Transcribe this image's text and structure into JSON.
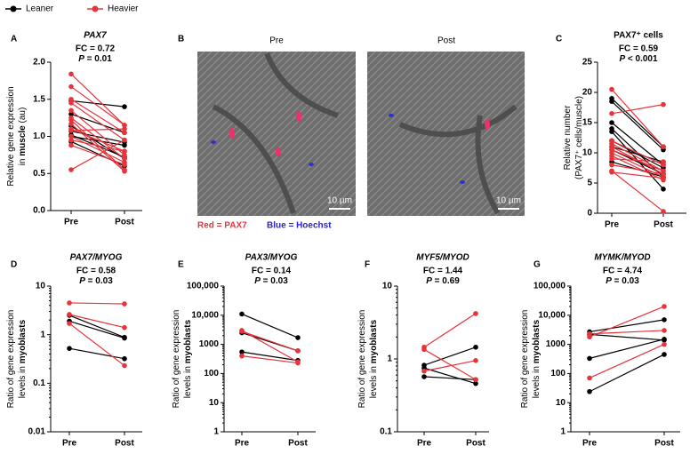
{
  "legend": [
    {
      "name": "Leaner",
      "color": "#000000"
    },
    {
      "name": "Heavier",
      "color": "#e8333b"
    }
  ],
  "image_panel": {
    "panel": "B",
    "titles": [
      "Pre",
      "Post"
    ],
    "scale_bar": "10 µm",
    "stains": [
      {
        "text": "Red = PAX7",
        "color": "#e8333b"
      },
      {
        "text": "Blue = Hoechst",
        "color": "#2a22d6"
      }
    ]
  },
  "chart_data": [
    {
      "type": "paired-line",
      "panel": "A",
      "title": "PAX7",
      "italic": true,
      "fc": "FC = 0.72",
      "p": [
        "P",
        " = 0.01"
      ],
      "ylabel": [
        [
          "Relative gene expression"
        ],
        [
          "in ",
          "muscle",
          " (au)"
        ]
      ],
      "categories": [
        "Pre",
        "Post"
      ],
      "log": false,
      "ylim": [
        0,
        2
      ],
      "yticks": [
        {
          "value": 0,
          "label": "0.0"
        },
        0.5,
        {
          "value": 1,
          "label": "1.0"
        },
        1.5,
        {
          "value": 2,
          "label": "2.0"
        }
      ],
      "leaner": [
        [
          1.48,
          1.4
        ],
        [
          1.3,
          1.05
        ],
        [
          1.0,
          0.88
        ],
        [
          1.07,
          0.92
        ],
        [
          1.02,
          0.72
        ],
        [
          0.93,
          0.6
        ],
        [
          1.14,
          0.7
        ]
      ],
      "heavier": [
        [
          1.84,
          1.15
        ],
        [
          1.67,
          1.15
        ],
        [
          1.5,
          1.05
        ],
        [
          1.45,
          0.95
        ],
        [
          1.35,
          0.75
        ],
        [
          1.22,
          0.55
        ],
        [
          1.17,
          0.53
        ],
        [
          1.1,
          0.8
        ],
        [
          1.08,
          1.1
        ],
        [
          1.0,
          0.65
        ],
        [
          0.95,
          0.8
        ],
        [
          0.88,
          0.62
        ],
        [
          0.55,
          0.95
        ],
        [
          1.25,
          0.7
        ]
      ]
    },
    {
      "type": "paired-line",
      "panel": "C",
      "title": "PAX7⁺ cells",
      "italic": false,
      "fc": "FC = 0.59",
      "p": [
        "P",
        " < 0.001"
      ],
      "ylabel": [
        [
          "Relative number"
        ],
        [
          "(PAX7⁺ cells/muscle)"
        ]
      ],
      "categories": [
        "Pre",
        "Post"
      ],
      "log": false,
      "ylim": [
        0,
        25
      ],
      "yticks": [
        0,
        5,
        10,
        15,
        20,
        25
      ],
      "leaner": [
        [
          19,
          11
        ],
        [
          18.5,
          10.5
        ],
        [
          15,
          8
        ],
        [
          14,
          6
        ],
        [
          13.5,
          4
        ],
        [
          12,
          7.5
        ],
        [
          10.5,
          6.5
        ],
        [
          8.5,
          6
        ],
        [
          11,
          8.5
        ]
      ],
      "heavier": [
        [
          20.5,
          11
        ],
        [
          16.5,
          18
        ],
        [
          12,
          8
        ],
        [
          11.5,
          7
        ],
        [
          11,
          6.5
        ],
        [
          10.5,
          7
        ],
        [
          10,
          6
        ],
        [
          9.5,
          5.5
        ],
        [
          9,
          8.5
        ],
        [
          8,
          6.5
        ],
        [
          6.8,
          5.8
        ],
        [
          7,
          0.3
        ]
      ]
    },
    {
      "type": "paired-line",
      "panel": "D",
      "title": "PAX7/MYOG",
      "italic": true,
      "fc": "FC = 0.58",
      "p": [
        "P",
        " = 0.03"
      ],
      "ylabel": [
        [
          "Ratio of gene expression"
        ],
        [
          "levels in ",
          "myoblasts"
        ]
      ],
      "categories": [
        "Pre",
        "Post"
      ],
      "log": true,
      "ylim": [
        0.01,
        10
      ],
      "yticks": [
        0.01,
        0.1,
        1,
        10
      ],
      "leaner": [
        [
          1.9,
          0.85
        ],
        [
          0.52,
          0.32
        ],
        [
          2.5,
          0.88
        ]
      ],
      "heavier": [
        [
          4.5,
          4.3
        ],
        [
          2.6,
          1.4
        ],
        [
          1.7,
          0.23
        ]
      ]
    },
    {
      "type": "paired-line",
      "panel": "E",
      "title": "PAX3/MYOG",
      "italic": true,
      "fc": "FC = 0.14",
      "p": [
        "P",
        " = 0.03"
      ],
      "ylabel": [
        [
          "Ratio of gene expression"
        ],
        [
          "levels in ",
          "myoblasts"
        ]
      ],
      "categories": [
        "Pre",
        "Post"
      ],
      "log": true,
      "ylim": [
        1,
        100000
      ],
      "yticks": [
        1,
        10,
        100,
        1000,
        {
          "value": 10000,
          "label": "10,000"
        },
        {
          "value": 100000,
          "label": "100,000"
        }
      ],
      "leaner": [
        [
          11000,
          1700
        ],
        [
          2500,
          600
        ],
        [
          550,
          280
        ]
      ],
      "heavier": [
        [
          3000,
          250
        ],
        [
          2800,
          600
        ],
        [
          400,
          230
        ]
      ]
    },
    {
      "type": "paired-line",
      "panel": "F",
      "title": "MYF5/MYOD",
      "italic": true,
      "fc": "FC = 1.44",
      "p": [
        "P",
        " = 0.69"
      ],
      "ylabel": [
        [
          "Ratio of gene expression"
        ],
        [
          "levels in ",
          "myoblasts"
        ]
      ],
      "categories": [
        "Pre",
        "Post"
      ],
      "log": true,
      "ylim": [
        0.1,
        10
      ],
      "yticks": [
        0.1,
        1,
        10
      ],
      "leaner": [
        [
          0.82,
          1.45
        ],
        [
          0.57,
          0.52
        ],
        [
          0.75,
          0.46
        ]
      ],
      "heavier": [
        [
          1.45,
          4.2
        ],
        [
          1.35,
          0.52
        ],
        [
          0.68,
          0.95
        ]
      ]
    },
    {
      "type": "paired-line",
      "panel": "G",
      "title": "MYMK/MYOD",
      "italic": true,
      "fc": "FC = 4.74",
      "p": [
        "P",
        " = 0.03"
      ],
      "ylabel": [
        [
          "Ratio of gene expression"
        ],
        [
          "levels in ",
          "myoblasts"
        ]
      ],
      "categories": [
        "Pre",
        "Post"
      ],
      "log": true,
      "ylim": [
        1,
        100000
      ],
      "yticks": [
        1,
        10,
        100,
        1000,
        {
          "value": 10000,
          "label": "10,000"
        },
        {
          "value": 100000,
          "label": "100,000"
        }
      ],
      "leaner": [
        [
          2700,
          7000
        ],
        [
          2200,
          1400
        ],
        [
          330,
          1500
        ],
        [
          24,
          450
        ]
      ],
      "heavier": [
        [
          1800,
          20000
        ],
        [
          2300,
          3000
        ],
        [
          70,
          1000
        ]
      ]
    }
  ]
}
